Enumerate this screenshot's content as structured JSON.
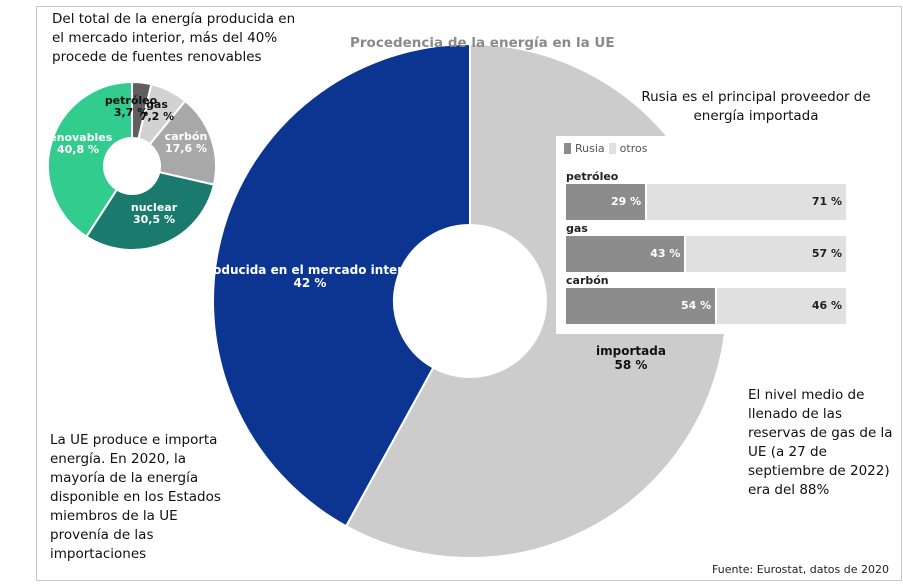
{
  "title": "Procedencia de la energía en la UE",
  "source": "Fuente: Eurostat, datos de 2020",
  "notes": {
    "renewables": "Del total de la energía producida en el mercado interior, más del 40% procede de fuentes renovables",
    "russia": "Rusia es el principal proveedor de energía importada",
    "reserves": "El nivel medio de llenado de las reservas de gas de la UE (a 27 de septiembre de 2022) era del 88%",
    "produce": "La UE produce e importa energía. En 2020, la mayoría de la energía disponible en los Estados miembros de la UE provenía de las importaciones"
  },
  "chart_data": [
    {
      "type": "pie",
      "title": "Procedencia de la energía en la UE",
      "slices": [
        {
          "label": "producida en el mercado interior",
          "value_label": "42 %",
          "value": 42,
          "color": "#0b3591"
        },
        {
          "label": "importada",
          "value_label": "58 %",
          "value": 58,
          "color": "#cccccc"
        }
      ]
    },
    {
      "type": "pie",
      "slices": [
        {
          "label": "petróleo",
          "value_label": "3,7 %",
          "value": 3.7,
          "color": "#5f5f5f"
        },
        {
          "label": "gas",
          "value_label": "7,2 %",
          "value": 7.2,
          "color": "#d2d2d2"
        },
        {
          "label": "carbón",
          "value_label": "17,6 %",
          "value": 17.6,
          "color": "#a8a8a8"
        },
        {
          "label": "nuclear",
          "value_label": "30,5 %",
          "value": 30.5,
          "color": "#1a7a6e"
        },
        {
          "label": "renovables",
          "value_label": "40,8 %",
          "value": 40.8,
          "color": "#33cc8f"
        }
      ]
    },
    {
      "type": "bar",
      "orientation": "horizontal",
      "stacked": true,
      "legend": [
        "Rusia",
        "otros"
      ],
      "categories": [
        "petróleo",
        "gas",
        "carbón"
      ],
      "series": [
        {
          "name": "Rusia",
          "values": [
            29,
            43,
            54
          ],
          "labels": [
            "29 %",
            "43 %",
            "54 %"
          ],
          "color": "#8c8c8c"
        },
        {
          "name": "otros",
          "values": [
            71,
            57,
            46
          ],
          "labels": [
            "71 %",
            "57 %",
            "46 %"
          ],
          "color": "#e0e0e0"
        }
      ]
    }
  ]
}
